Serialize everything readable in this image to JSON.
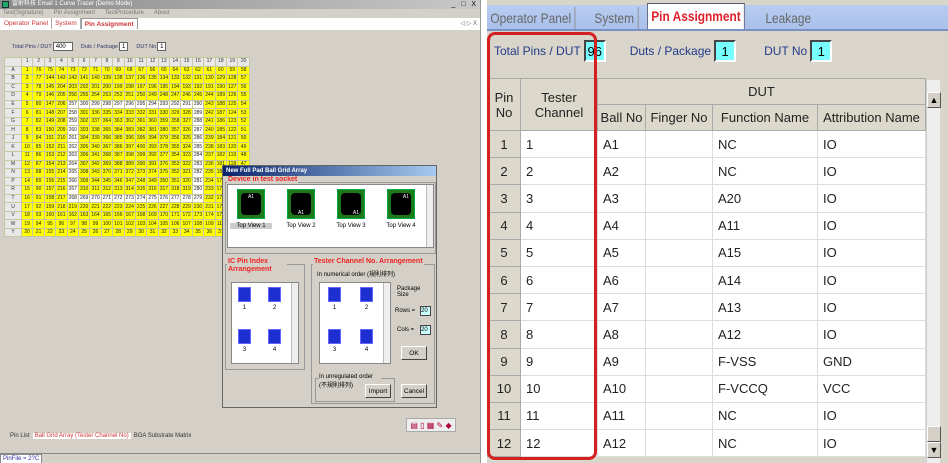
{
  "left": {
    "title": "雷射科技 Email 1 Curve Tracer (Demo Mode)",
    "window_buttons": "_ □ X",
    "menu": [
      "Test(Signature)",
      "Pin Assignment",
      "TestProcedure",
      "About"
    ],
    "tabs": [
      "Operator Panel",
      "System",
      "Pin Assignment"
    ],
    "active_tab": 2,
    "tab_nav": "◁ ▷ X",
    "fields": {
      "total_pins_label": "Total Pins / DUT",
      "total_pins": "400",
      "duts_label": "Duts / Package",
      "duts": "1",
      "dut_no_label": "DUT No",
      "dut_no": "1"
    },
    "grid": {
      "col_headers": [
        "1",
        "2",
        "3",
        "4",
        "5",
        "6",
        "7",
        "8",
        "9",
        "10",
        "11",
        "12",
        "13",
        "14",
        "15",
        "16",
        "17",
        "18",
        "19",
        "20"
      ],
      "row_headers": [
        "A",
        "B",
        "C",
        "D",
        "E",
        "F",
        "G",
        "H",
        "J",
        "K",
        "L",
        "M",
        "N",
        "P",
        "R",
        "T",
        "U",
        "V",
        "W",
        "Y"
      ],
      "rows": [
        [
          1,
          76,
          75,
          74,
          73,
          72,
          71,
          70,
          69,
          68,
          67,
          66,
          65,
          64,
          63,
          62,
          61,
          60,
          59,
          58
        ],
        [
          2,
          77,
          144,
          143,
          142,
          141,
          140,
          139,
          138,
          137,
          136,
          135,
          134,
          133,
          132,
          131,
          130,
          129,
          128,
          57
        ],
        [
          3,
          78,
          145,
          204,
          203,
          202,
          201,
          200,
          199,
          198,
          197,
          196,
          195,
          194,
          193,
          192,
          191,
          190,
          127,
          56
        ],
        [
          4,
          79,
          146,
          205,
          256,
          255,
          254,
          253,
          252,
          251,
          250,
          249,
          248,
          247,
          246,
          245,
          244,
          189,
          126,
          55
        ],
        [
          5,
          80,
          147,
          206,
          257,
          300,
          299,
          298,
          297,
          296,
          295,
          294,
          293,
          292,
          291,
          290,
          243,
          188,
          125,
          54
        ],
        [
          6,
          81,
          148,
          207,
          258,
          301,
          336,
          335,
          334,
          333,
          332,
          331,
          330,
          329,
          328,
          289,
          242,
          187,
          124,
          53
        ],
        [
          7,
          82,
          149,
          208,
          259,
          302,
          337,
          364,
          363,
          362,
          361,
          360,
          359,
          358,
          327,
          288,
          241,
          186,
          123,
          52
        ],
        [
          8,
          83,
          150,
          209,
          260,
          303,
          338,
          365,
          384,
          383,
          382,
          381,
          380,
          357,
          326,
          287,
          240,
          185,
          122,
          51
        ],
        [
          9,
          84,
          151,
          210,
          261,
          304,
          339,
          366,
          385,
          396,
          395,
          394,
          379,
          356,
          325,
          286,
          239,
          184,
          121,
          50
        ],
        [
          10,
          85,
          152,
          211,
          262,
          305,
          340,
          367,
          386,
          397,
          400,
          393,
          378,
          355,
          324,
          285,
          238,
          183,
          120,
          49
        ],
        [
          11,
          86,
          153,
          212,
          263,
          306,
          341,
          368,
          387,
          398,
          399,
          392,
          377,
          354,
          323,
          284,
          237,
          182,
          119,
          48
        ],
        [
          12,
          87,
          154,
          213,
          264,
          307,
          342,
          369,
          388,
          389,
          390,
          391,
          376,
          353,
          322,
          283,
          236,
          181,
          118,
          47
        ],
        [
          13,
          88,
          155,
          214,
          265,
          308,
          343,
          370,
          371,
          372,
          373,
          374,
          375,
          352,
          321,
          282,
          235,
          180,
          117,
          46
        ],
        [
          14,
          89,
          156,
          215,
          266,
          309,
          344,
          345,
          346,
          347,
          348,
          349,
          350,
          351,
          320,
          281,
          234,
          179,
          116,
          45
        ],
        [
          15,
          90,
          157,
          216,
          267,
          310,
          311,
          312,
          313,
          314,
          315,
          316,
          317,
          318,
          319,
          280,
          233,
          178,
          115,
          44
        ],
        [
          16,
          91,
          158,
          217,
          268,
          269,
          270,
          271,
          272,
          273,
          274,
          275,
          276,
          277,
          278,
          279,
          232,
          177,
          114,
          43
        ],
        [
          17,
          92,
          159,
          218,
          219,
          220,
          221,
          222,
          223,
          224,
          225,
          226,
          227,
          228,
          229,
          230,
          231,
          176,
          113,
          42
        ],
        [
          18,
          93,
          160,
          161,
          162,
          163,
          164,
          165,
          166,
          167,
          168,
          169,
          170,
          171,
          172,
          173,
          174,
          175,
          112,
          41
        ],
        [
          19,
          94,
          95,
          96,
          97,
          98,
          99,
          100,
          101,
          102,
          103,
          104,
          105,
          106,
          107,
          108,
          109,
          110,
          111,
          40
        ],
        [
          20,
          21,
          22,
          23,
          24,
          25,
          26,
          27,
          28,
          29,
          30,
          31,
          32,
          33,
          34,
          35,
          36,
          37,
          38,
          39
        ]
      ],
      "highlight_color": "#ffff00"
    },
    "dialog": {
      "title": "New Full Pad Ball Grid Array",
      "device_group": "Device in test socket",
      "views": [
        "Top View 1",
        "Top View 2",
        "Top View 3",
        "Top View 4"
      ],
      "chip_label": "A1",
      "ic_pin_group": "IC Pin Index Arrangement",
      "ic_pin_items": [
        "1",
        "2",
        "3",
        "4"
      ],
      "tester_group": "Tester Channel No. Arrangement",
      "numerical_label": "In numerical order (規則排列)",
      "numerical_items": [
        "1",
        "2",
        "3",
        "4"
      ],
      "package_size_label": "Package Size",
      "rows_label": "Rows =",
      "rows_value": "20",
      "cols_label": "Cols =",
      "cols_value": "20",
      "ok": "OK",
      "irregular_label": "In unregulated order (不規則排列)",
      "import": "Import",
      "cancel": "Cancel"
    },
    "bottom_tabs": [
      "Pin List",
      "Ball Grid Array (Tester Channel No)",
      "BGA Substrate Matrix"
    ],
    "status": "PinFile = 2?C"
  },
  "right": {
    "tabs": [
      "Operator Panel",
      "System",
      "Pin Assignment",
      "Leakage"
    ],
    "active_tab": 2,
    "fields": {
      "total_pins_label": "Total Pins / DUT",
      "total_pins": "96",
      "duts_label": "Duts / Package",
      "duts": "1",
      "dut_no_label": "DUT No",
      "dut_no": "1"
    },
    "table": {
      "headers": {
        "pin_no": "Pin No",
        "tester_channel": "Tester Channel",
        "dut": "DUT",
        "ball_no": "Ball No",
        "finger_no": "Finger No",
        "function_name": "Function Name",
        "attribution_name": "Attribution Name"
      },
      "rows": [
        [
          "1",
          "1",
          "A1",
          "",
          "NC",
          "IO"
        ],
        [
          "2",
          "2",
          "A2",
          "",
          "NC",
          "IO"
        ],
        [
          "3",
          "3",
          "A3",
          "",
          "A20",
          "IO"
        ],
        [
          "4",
          "4",
          "A4",
          "",
          "A11",
          "IO"
        ],
        [
          "5",
          "5",
          "A5",
          "",
          "A15",
          "IO"
        ],
        [
          "6",
          "6",
          "A6",
          "",
          "A14",
          "IO"
        ],
        [
          "7",
          "7",
          "A7",
          "",
          "A13",
          "IO"
        ],
        [
          "8",
          "8",
          "A8",
          "",
          "A12",
          "IO"
        ],
        [
          "9",
          "9",
          "A9",
          "",
          "F-VSS",
          "GND"
        ],
        [
          "10",
          "10",
          "A10",
          "",
          "F-VCCQ",
          "VCC"
        ],
        [
          "11",
          "11",
          "A11",
          "",
          "NC",
          "IO"
        ],
        [
          "12",
          "12",
          "A12",
          "",
          "NC",
          "IO"
        ]
      ]
    },
    "highlight_color": "#d42020"
  }
}
